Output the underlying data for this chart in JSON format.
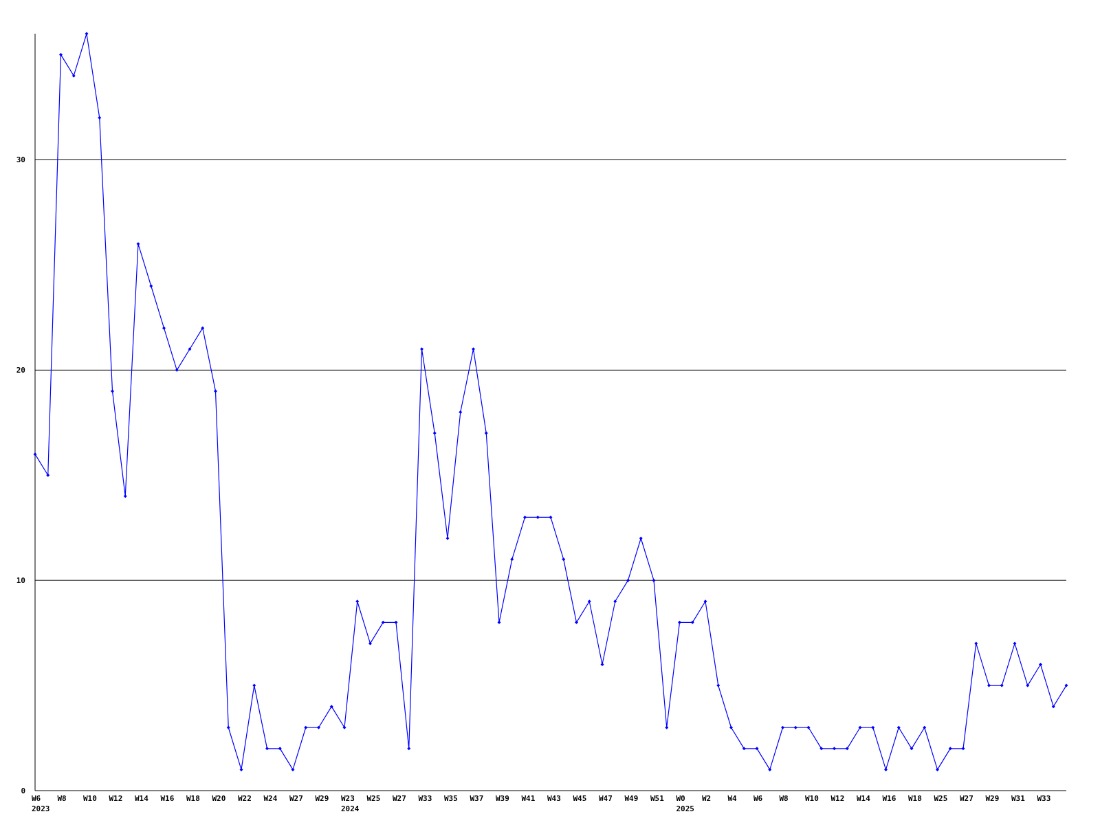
{
  "chart_data": {
    "type": "line",
    "categories": [
      "W6\n2023",
      null,
      "W8",
      null,
      "W10",
      null,
      "W12",
      null,
      "W14",
      null,
      "W16",
      null,
      "W18",
      null,
      "W20",
      null,
      "W22",
      null,
      "W24",
      null,
      "W27",
      null,
      "W29",
      null,
      "W23\n2024",
      null,
      "W25",
      null,
      "W27",
      null,
      "W33",
      null,
      "W35",
      null,
      "W37",
      null,
      "W39",
      null,
      "W41",
      null,
      "W43",
      null,
      "W45",
      null,
      "W47",
      null,
      "W49",
      null,
      "W51",
      null,
      "W0\n2025",
      null,
      "W2",
      null,
      "W4",
      null,
      "W6",
      null,
      "W8",
      null,
      "W10",
      null,
      "W12",
      null,
      "W14",
      null,
      "W16",
      null,
      "W18",
      null,
      "W25",
      null,
      "W27",
      null,
      "W29",
      null,
      "W31",
      null,
      "W33",
      null,
      null
    ],
    "series": [
      {
        "color": "#0000ff",
        "values": [
          16,
          15,
          35,
          34,
          36,
          32,
          19,
          14,
          26,
          24,
          22,
          20,
          21,
          22,
          19,
          3,
          1,
          5,
          2,
          2,
          1,
          3,
          3,
          4,
          3,
          9,
          7,
          8,
          8,
          2,
          21,
          17,
          12,
          18,
          21,
          17,
          8,
          11,
          13,
          13,
          13,
          11,
          8,
          9,
          6,
          9,
          10,
          12,
          10,
          3,
          8,
          8,
          9,
          5,
          3,
          2,
          2,
          1,
          3,
          3,
          3,
          2,
          2,
          2,
          3,
          3,
          1,
          3,
          2,
          3,
          1,
          2,
          2,
          7,
          5,
          5,
          7,
          5,
          6,
          4,
          5
        ]
      }
    ],
    "ylim": [
      0,
      36
    ],
    "yticks": [
      0,
      10,
      20,
      30
    ],
    "grid": "y",
    "marker": "diamond",
    "line_style": "solid"
  }
}
